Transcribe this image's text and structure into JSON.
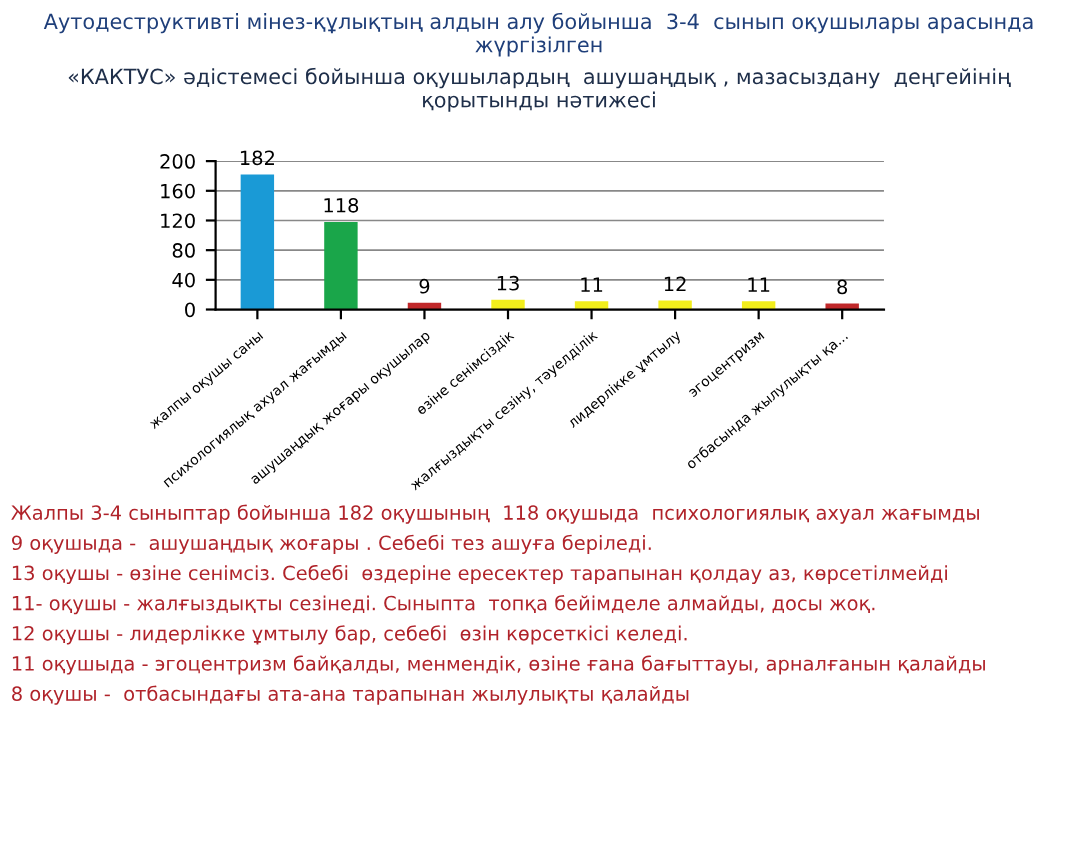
{
  "chart_data": {
    "type": "bar",
    "title": "Аутодеструктивті мінез-құлықтың алдын алу бойынша  3-4  сынып оқушылары арасында жүргізілген",
    "subtitle": "«КАКТУС» әдістемесі бойынша оқушылардың  ашушаңдық , мазасыздану  деңгейінің қорытынды нәтижесі",
    "categories": [
      "жалпы оқушы саны",
      "психологиялық ахуал жағымды",
      "ашушаңдық жоғары оқушылар",
      "өзіне сенімсіздік",
      "жалғыздықты сезіну, тәуелділік",
      "лидерлікке ұмтылу",
      "эгоцентризм",
      "отбасында жылулықты қа..."
    ],
    "values": [
      182,
      118,
      9,
      13,
      11,
      12,
      11,
      8
    ],
    "colors": [
      "#1a9ad6",
      "#1aa64a",
      "#c0282a",
      "#f2ee1c",
      "#f2ee1c",
      "#f2ee1c",
      "#f2ee1c",
      "#c0282a"
    ],
    "ylim": [
      0,
      200
    ],
    "yticks": [
      0,
      40,
      80,
      120,
      160,
      200
    ],
    "grid": "y",
    "data_labels": true,
    "legend": false,
    "annotations": [
      "Жалпы 3-4 сыныптар бойынша 182 оқушының  118 оқушыда  психологиялық ахуал жағымды",
      "9 оқушыда -  ашушаңдық жоғары . Себебі тез ашуға беріледі.",
      "13 оқушы - өзіне сенімсіз. Себебі  өздеріне ересектер тарапынан қолдау аз, көрсетілмейді",
      "11- оқушы - жалғыздықты сезінеді. Сыныпта  топқа бейімделе алмайды, досы жоқ.",
      "12 оқушы - лидерлікке ұмтылу бар, себебі  өзін көрсеткісі келеді.",
      "11 оқушыда - эгоцентризм байқалды, менмендік, өзіне ғана бағыттауы, арналғанын қалайды",
      "8 оқушы -  отбасындағы ата-ана тарапынан жылулықты қалайды"
    ]
  }
}
